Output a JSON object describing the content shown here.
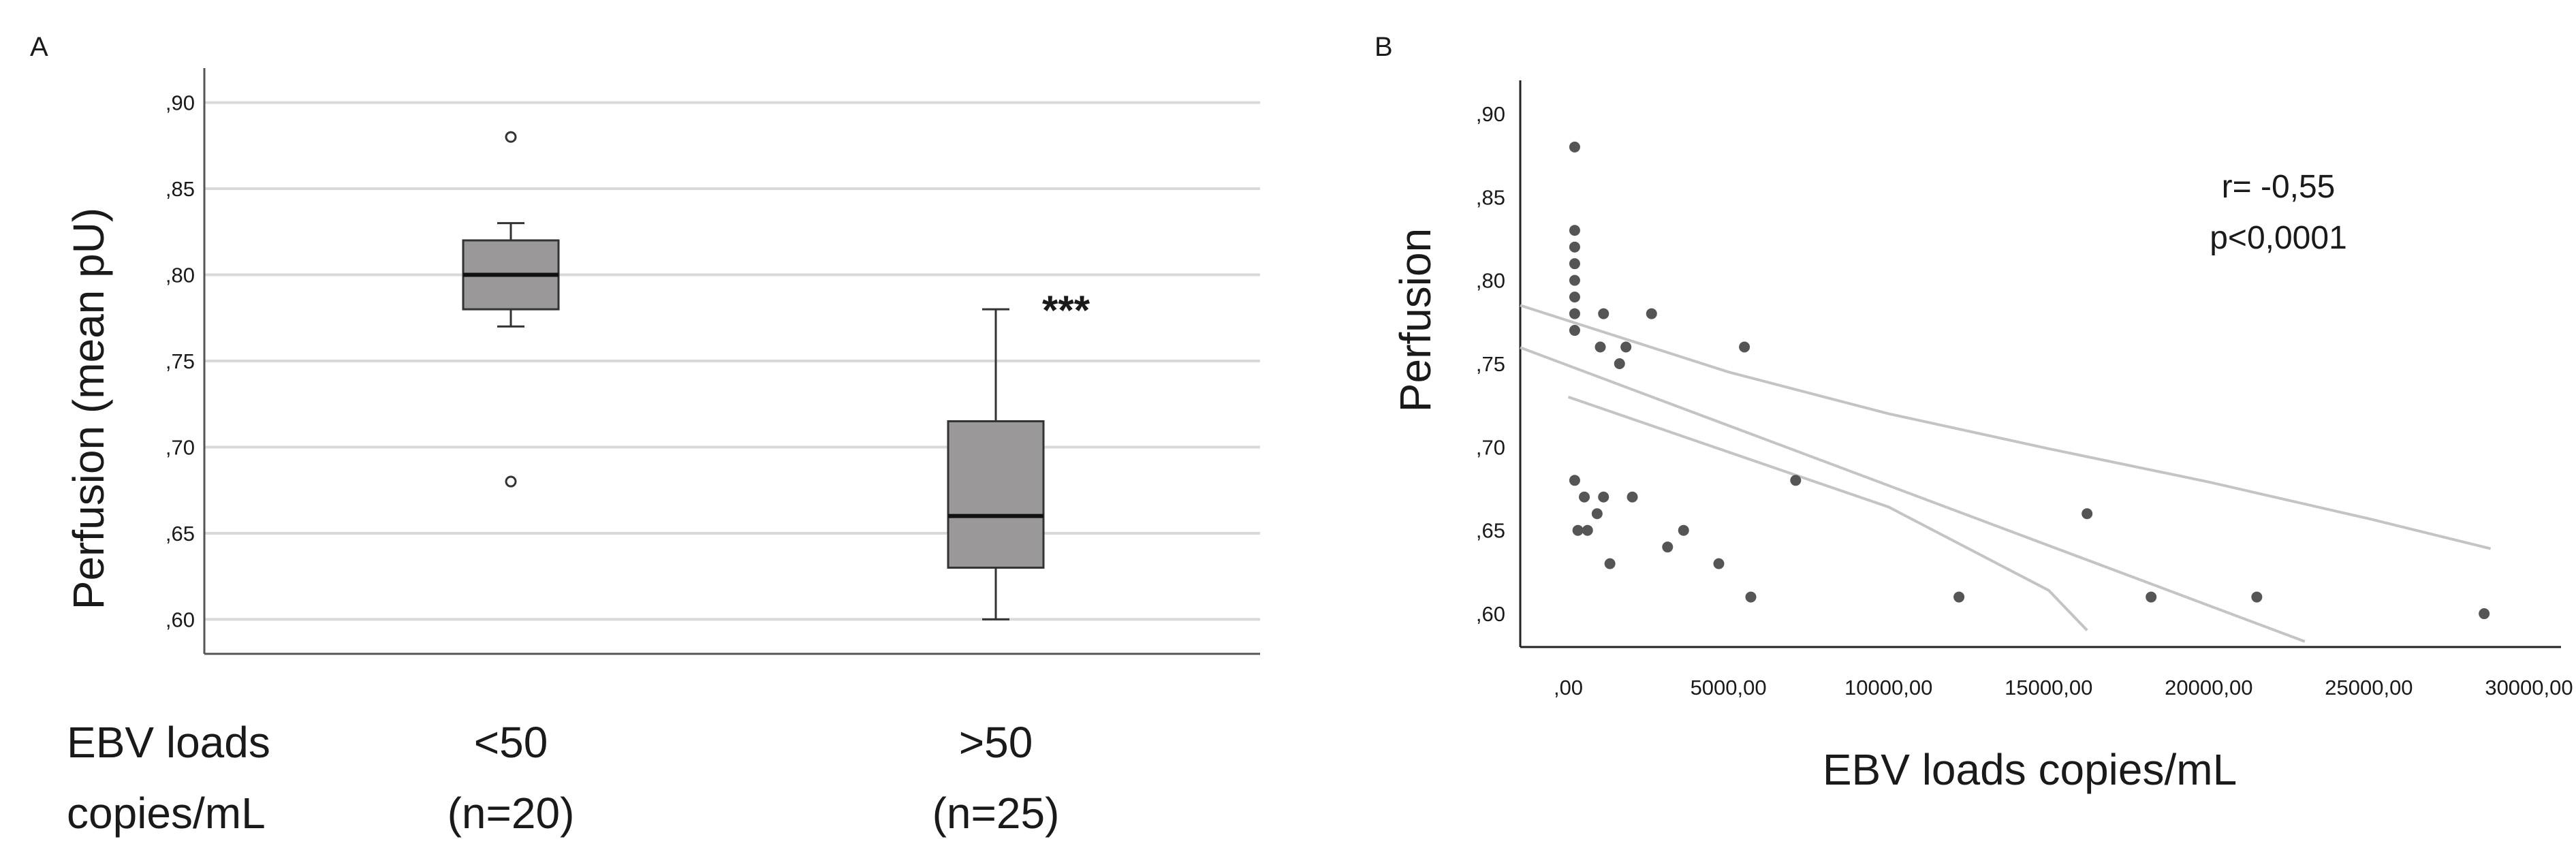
{
  "chart_data": [
    {
      "panel": "A",
      "type": "box",
      "ylabel": "Perfusion (mean pU)",
      "ylim": [
        0.58,
        0.92
      ],
      "yticks": [
        0.6,
        0.65,
        0.7,
        0.75,
        0.8,
        0.85,
        0.9
      ],
      "ytick_labels": [
        ",60",
        ",65",
        ",70",
        ",75",
        ",80",
        ",85",
        ",90"
      ],
      "grid": true,
      "x_header": [
        "EBV loads",
        "copies/mL"
      ],
      "groups": [
        {
          "label": "<50",
          "n_label": "(n=20)",
          "min": 0.77,
          "q1": 0.78,
          "median": 0.8,
          "q3": 0.82,
          "max": 0.83,
          "outliers": [
            0.88,
            0.68
          ]
        },
        {
          "label": ">50",
          "n_label": "(n=25)",
          "min": 0.6,
          "q1": 0.63,
          "median": 0.66,
          "q3": 0.715,
          "max": 0.78,
          "outliers": []
        }
      ],
      "significance": "***",
      "colors": {
        "box": "#9a9898",
        "grid": "#d9d9d9",
        "whisker": "#333333"
      }
    },
    {
      "panel": "B",
      "type": "scatter",
      "ylabel": "Perfusion",
      "xlabel": "EBV loads  copies/mL",
      "xlim": [
        -1500,
        31000
      ],
      "ylim": [
        0.58,
        0.92
      ],
      "yticks": [
        0.6,
        0.65,
        0.7,
        0.75,
        0.8,
        0.85,
        0.9
      ],
      "ytick_labels": [
        ",60",
        ",65",
        ",70",
        ",75",
        ",80",
        ",85",
        ",90"
      ],
      "xticks": [
        0,
        5000,
        10000,
        15000,
        20000,
        25000,
        30000
      ],
      "xtick_labels": [
        ",00",
        "5000,00",
        "10000,00",
        "15000,00",
        "20000,00",
        "25000,00",
        "30000,00"
      ],
      "stats": [
        "r= -0,55",
        "p<0,0001"
      ],
      "points": [
        [
          200,
          0.88
        ],
        [
          200,
          0.83
        ],
        [
          200,
          0.82
        ],
        [
          200,
          0.81
        ],
        [
          200,
          0.8
        ],
        [
          200,
          0.79
        ],
        [
          200,
          0.78
        ],
        [
          200,
          0.77
        ],
        [
          1100,
          0.78
        ],
        [
          1000,
          0.76
        ],
        [
          1600,
          0.75
        ],
        [
          1800,
          0.76
        ],
        [
          2600,
          0.78
        ],
        [
          5500,
          0.76
        ],
        [
          200,
          0.68
        ],
        [
          500,
          0.67
        ],
        [
          1100,
          0.67
        ],
        [
          2000,
          0.67
        ],
        [
          7100,
          0.68
        ],
        [
          900,
          0.66
        ],
        [
          300,
          0.65
        ],
        [
          600,
          0.65
        ],
        [
          3600,
          0.65
        ],
        [
          3100,
          0.64
        ],
        [
          1300,
          0.63
        ],
        [
          4700,
          0.63
        ],
        [
          5700,
          0.61
        ],
        [
          12200,
          0.61
        ],
        [
          16200,
          0.66
        ],
        [
          18200,
          0.61
        ],
        [
          21500,
          0.61
        ],
        [
          28600,
          0.6
        ]
      ],
      "fit_line": {
        "slope": -7.2e-06,
        "intercept": 0.7489,
        "x_range": [
          -1500,
          23000
        ]
      },
      "ci_upper": {
        "x": [
          -1500,
          5000,
          10000,
          15000,
          20000,
          25000,
          28800
        ],
        "y": [
          0.785,
          0.745,
          0.72,
          0.699,
          0.679,
          0.657,
          0.639
        ]
      },
      "ci_lower": {
        "x": [
          0,
          5000,
          10000,
          15000,
          16200
        ],
        "y": [
          0.73,
          0.697,
          0.664,
          0.614,
          0.59
        ]
      },
      "colors": {
        "point": "#555555",
        "line": "#c4c4c4",
        "axis": "#222222"
      }
    }
  ]
}
